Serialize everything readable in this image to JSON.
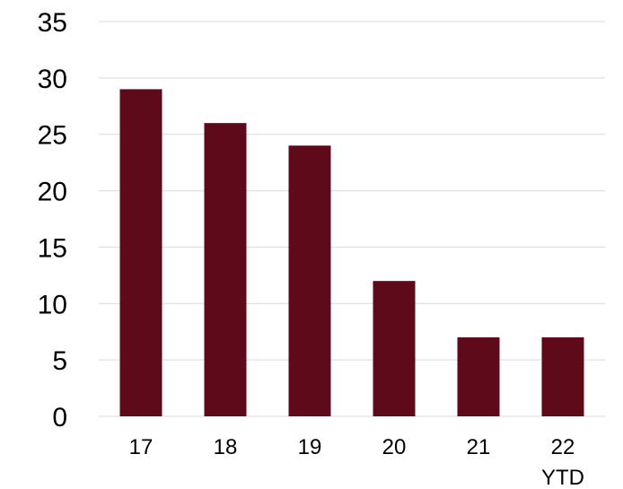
{
  "chart_data": {
    "type": "bar",
    "title": "",
    "xlabel": "",
    "ylabel": "",
    "categories": [
      [
        "17"
      ],
      [
        "18"
      ],
      [
        "19"
      ],
      [
        "20"
      ],
      [
        "21"
      ],
      [
        "22",
        "YTD"
      ]
    ],
    "values": [
      29,
      26,
      24,
      12,
      7,
      7
    ],
    "ylim": [
      0,
      35
    ],
    "yticks": [
      0,
      5,
      10,
      15,
      20,
      25,
      30,
      35
    ],
    "grid": true,
    "legend": "none",
    "colors": {
      "bar": "#5f0a1a",
      "grid": "#d9d9d9",
      "text": "#000000"
    }
  }
}
